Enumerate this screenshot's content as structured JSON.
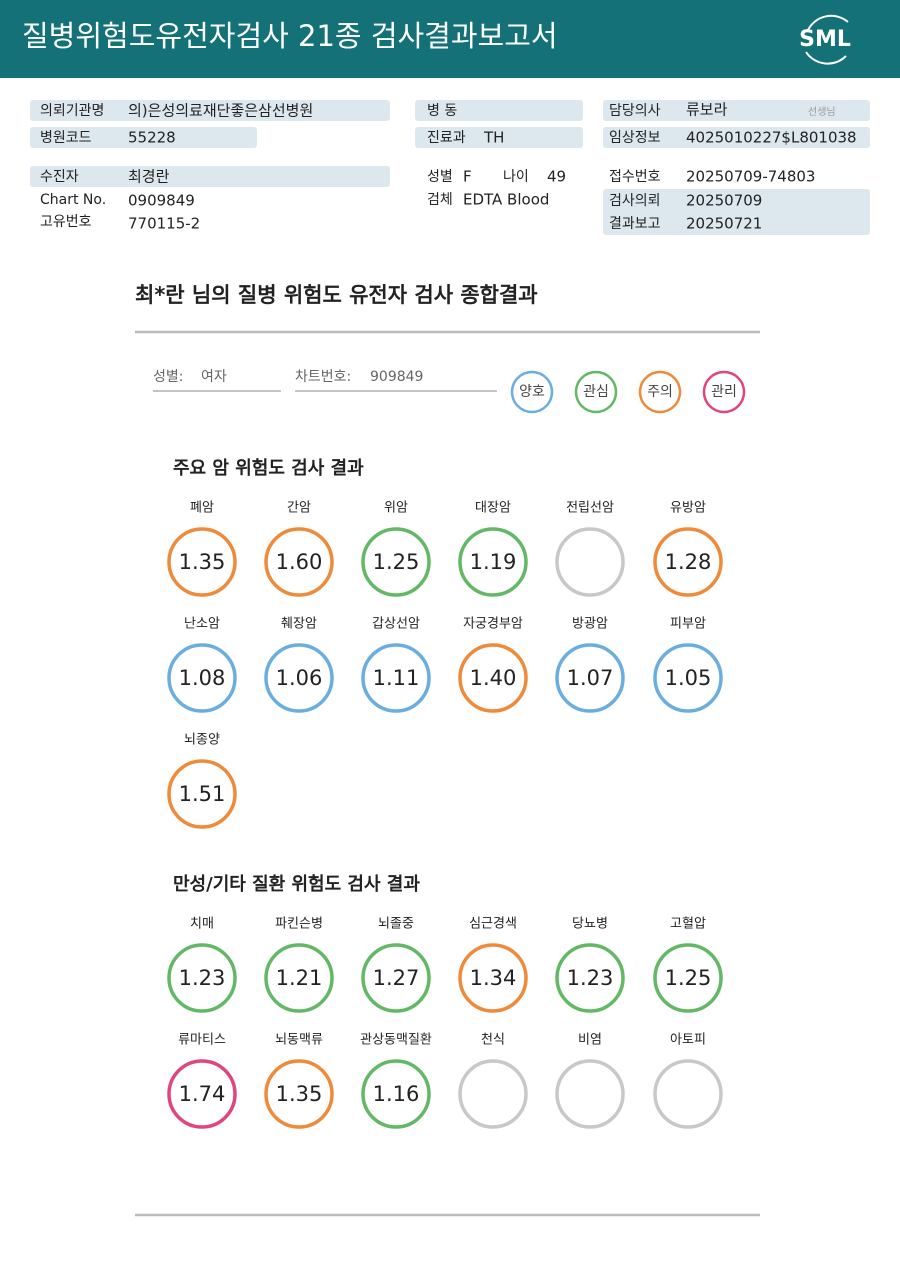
{
  "header": {
    "title": "질병위험도유전자검사 21종 검사결과보고서",
    "logo": "SML"
  },
  "info": {
    "fields": [
      {
        "label": "의뢰기관명",
        "value": "의)은성의료재단좋은삼선병원"
      },
      {
        "label": "병원코드",
        "value": "55228"
      },
      {
        "label": "수진자",
        "value": "최경란"
      },
      {
        "label": "Chart No.",
        "value": "0909849"
      },
      {
        "label": "고유번호",
        "value": "770115-2"
      },
      {
        "label": "병 동"
      },
      {
        "label": "진료과",
        "value": "TH"
      },
      {
        "label": "성별",
        "value": "F"
      },
      {
        "label": "나이",
        "value": "49"
      },
      {
        "label": "검체",
        "value": "EDTA Blood"
      },
      {
        "label": "담당의사",
        "value": "류보라",
        "suffix": "선생님"
      },
      {
        "label": "임상정보",
        "value": "4025010227$L801038"
      },
      {
        "label": "접수번호",
        "value": "20250709-74803"
      },
      {
        "label": "검사의뢰",
        "value": "20250709"
      },
      {
        "label": "결과보고",
        "value": "20250721"
      }
    ]
  },
  "summary": {
    "title": "최*란 님의 질병 위험도 유전자 검사 종합결과",
    "fields": [
      {
        "label": "성별:",
        "value": "여자"
      },
      {
        "label": "차트번호:",
        "value": "909849"
      }
    ],
    "legend": [
      {
        "label": "양호",
        "color": "#6aaee0"
      },
      {
        "label": "관심",
        "color": "#62b865"
      },
      {
        "label": "주의",
        "color": "#ee8a3a"
      },
      {
        "label": "관리",
        "color": "#e0457f"
      }
    ]
  },
  "sections": [
    {
      "title": "주요 암 위험도 검사 결과",
      "items": [
        {
          "name": "폐암",
          "value": "1.35",
          "color": "#ee8a3a"
        },
        {
          "name": "간암",
          "value": "1.60",
          "color": "#ee8a3a"
        },
        {
          "name": "위암",
          "value": "1.25",
          "color": "#62b865"
        },
        {
          "name": "대장암",
          "value": "1.19",
          "color": "#62b865"
        },
        {
          "name": "전립선암",
          "value": null,
          "color": "#c8c8c8"
        },
        {
          "name": "유방암",
          "value": "1.28",
          "color": "#ee8a3a"
        },
        {
          "name": "난소암",
          "value": "1.08",
          "color": "#6aaee0"
        },
        {
          "name": "췌장암",
          "value": "1.06",
          "color": "#6aaee0"
        },
        {
          "name": "갑상선암",
          "value": "1.11",
          "color": "#6aaee0"
        },
        {
          "name": "자궁경부암",
          "value": "1.40",
          "color": "#ee8a3a"
        },
        {
          "name": "방광암",
          "value": "1.07",
          "color": "#6aaee0"
        },
        {
          "name": "피부암",
          "value": "1.05",
          "color": "#6aaee0"
        },
        {
          "name": "뇌종양",
          "value": "1.51",
          "color": "#ee8a3a"
        }
      ]
    },
    {
      "title": "만성/기타 질환 위험도 검사 결과",
      "items": [
        {
          "name": "치매",
          "value": "1.23",
          "color": "#62b865"
        },
        {
          "name": "파킨슨병",
          "value": "1.21",
          "color": "#62b865"
        },
        {
          "name": "뇌졸중",
          "value": "1.27",
          "color": "#62b865"
        },
        {
          "name": "심근경색",
          "value": "1.34",
          "color": "#ee8a3a"
        },
        {
          "name": "당뇨병",
          "value": "1.23",
          "color": "#62b865"
        },
        {
          "name": "고혈압",
          "value": "1.25",
          "color": "#62b865"
        },
        {
          "name": "류마티스",
          "value": "1.74",
          "color": "#e0457f"
        },
        {
          "name": "뇌동맥류",
          "value": "1.35",
          "color": "#ee8a3a"
        },
        {
          "name": "관상동맥질환",
          "value": "1.16",
          "color": "#62b865"
        },
        {
          "name": "천식",
          "value": null,
          "color": "#c8c8c8"
        },
        {
          "name": "비염",
          "value": null,
          "color": "#c8c8c8"
        },
        {
          "name": "아토피",
          "value": null,
          "color": "#c8c8c8"
        }
      ]
    }
  ]
}
